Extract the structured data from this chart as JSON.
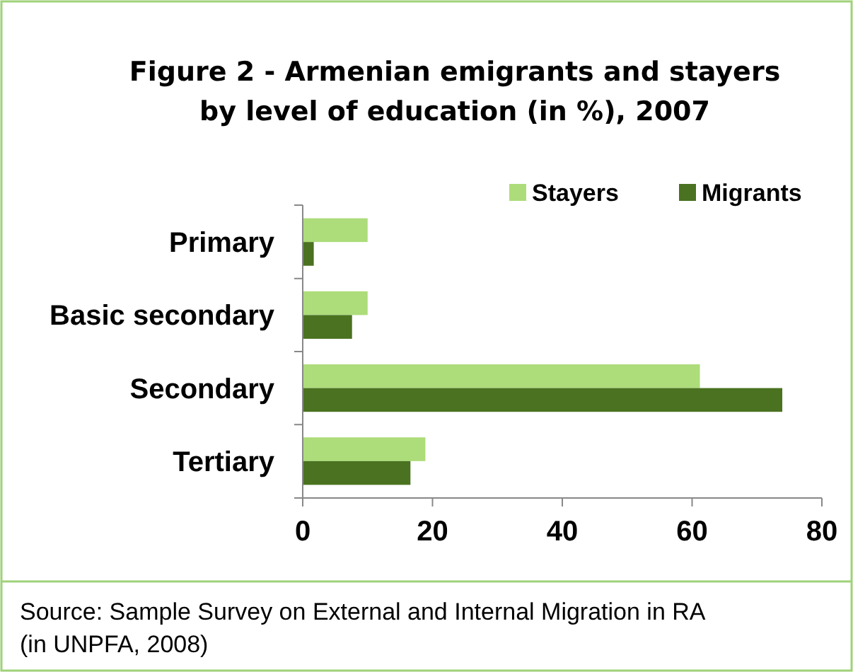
{
  "chart_data": {
    "type": "bar",
    "orientation": "horizontal",
    "title": "Figure 2 - Armenian emigrants and stayers\nby level of education (in %), 2007",
    "categories": [
      "Primary",
      "Basic secondary",
      "Secondary",
      "Tertiary"
    ],
    "series": [
      {
        "name": "Stayers",
        "color": "#addc7a",
        "values": [
          10,
          10,
          61.2,
          18.9
        ]
      },
      {
        "name": "Migrants",
        "color": "#4a7220",
        "values": [
          1.7,
          7.6,
          73.9,
          16.6
        ]
      }
    ],
    "xlim": [
      0,
      80
    ],
    "xticks": [
      0,
      20,
      40,
      60,
      80
    ],
    "grid": false,
    "legend": "top right",
    "annotations": [
      "Source: Sample Survey on External and Internal Migration in RA (in UNPFA, 2008)"
    ]
  }
}
